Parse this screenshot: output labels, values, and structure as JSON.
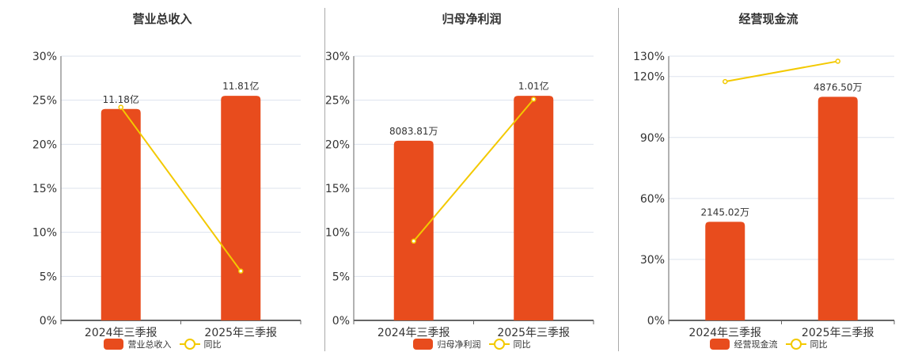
{
  "colors": {
    "bar": "#e84c1d",
    "line": "#f3c900",
    "grid": "#dde3ee",
    "axis": "#666666"
  },
  "chart_data": [
    {
      "type": "bar",
      "title": "营业总收入",
      "categories": [
        "2024年三季报",
        "2025年三季报"
      ],
      "series": [
        {
          "name": "营业总收入",
          "type": "bar",
          "values": [
            24.0,
            25.5
          ],
          "labels": [
            "11.18亿",
            "11.81亿"
          ]
        },
        {
          "name": "同比",
          "type": "line",
          "values": [
            24.2,
            5.6
          ]
        }
      ],
      "yticks": [
        "0%",
        "5%",
        "10%",
        "15%",
        "20%",
        "25%",
        "30%"
      ],
      "ylim": [
        0,
        30
      ],
      "grid": true,
      "legend_position": "bottom"
    },
    {
      "type": "bar",
      "title": "归母净利润",
      "categories": [
        "2024年三季报",
        "2025年三季报"
      ],
      "series": [
        {
          "name": "归母净利润",
          "type": "bar",
          "values": [
            20.4,
            25.5
          ],
          "labels": [
            "8083.81万",
            "1.01亿"
          ]
        },
        {
          "name": "同比",
          "type": "line",
          "values": [
            9.0,
            25.1
          ]
        }
      ],
      "yticks": [
        "0%",
        "5%",
        "10%",
        "15%",
        "20%",
        "25%",
        "30%"
      ],
      "ylim": [
        0,
        30
      ],
      "grid": true,
      "legend_position": "bottom"
    },
    {
      "type": "bar",
      "title": "经营现金流",
      "categories": [
        "2024年三季报",
        "2025年三季报"
      ],
      "series": [
        {
          "name": "经营现金流",
          "type": "bar",
          "values": [
            48.5,
            110.0
          ],
          "labels": [
            "2145.02万",
            "4876.50万"
          ]
        },
        {
          "name": "同比",
          "type": "line",
          "values": [
            117.5,
            127.5
          ]
        }
      ],
      "yticks": [
        "0%",
        "30%",
        "60%",
        "90%",
        "120%",
        "130%"
      ],
      "ylim": [
        0,
        130
      ],
      "grid": true,
      "legend_position": "bottom"
    }
  ],
  "panels": [
    {
      "title": "营业总收入",
      "legend_bar": "营业总收入",
      "legend_line": "同比"
    },
    {
      "title": "归母净利润",
      "legend_bar": "归母净利润",
      "legend_line": "同比"
    },
    {
      "title": "经营现金流",
      "legend_bar": "经营现金流",
      "legend_line": "同比"
    }
  ]
}
